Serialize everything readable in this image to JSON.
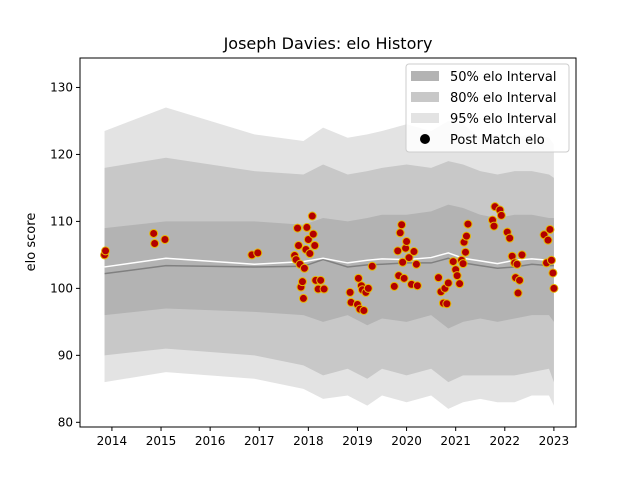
{
  "chart_data": {
    "type": "scatter",
    "title": "Joseph Davies: elo History",
    "xlabel": "",
    "ylabel": "elo score",
    "xlim": [
      2013.35,
      2023.45
    ],
    "ylim": [
      79.3,
      134.4
    ],
    "x_ticks": [
      2014,
      2015,
      2016,
      2017,
      2018,
      2019,
      2020,
      2021,
      2022,
      2023
    ],
    "y_ticks": [
      80,
      90,
      100,
      110,
      120,
      130
    ],
    "legend_position": "top-right",
    "grid": false,
    "legend": [
      {
        "label": "50% elo Interval",
        "kind": "band",
        "color": "#b3b3b3"
      },
      {
        "label": "80% elo Interval",
        "kind": "band",
        "color": "#c8c8c8"
      },
      {
        "label": "95% elo Interval",
        "kind": "band",
        "color": "#e3e3e3"
      },
      {
        "label": "Post Match elo",
        "kind": "marker",
        "color": "#000000"
      }
    ],
    "colors": {
      "band_50": "#b3b3b3",
      "band_80": "#c8c8c8",
      "band_95": "#e3e3e3",
      "median_line": "#808080",
      "mean_line": "#ffffff",
      "point_fill": "#b30000",
      "point_edge": "#e6b800"
    },
    "intervals": {
      "x": [
        2013.85,
        2015.1,
        2016.9,
        2017.9,
        2018.3,
        2018.8,
        2019.2,
        2019.5,
        2020.0,
        2020.5,
        2020.85,
        2021.15,
        2021.5,
        2021.85,
        2022.2,
        2022.55,
        2022.9,
        2023.0
      ],
      "lower_95": [
        86.0,
        87.5,
        86.5,
        85.0,
        83.5,
        84.0,
        82.5,
        84.0,
        83.0,
        84.0,
        82.0,
        83.0,
        83.5,
        83.0,
        83.0,
        84.0,
        84.0,
        82.5
      ],
      "lower_80": [
        90.0,
        91.0,
        90.0,
        88.5,
        87.0,
        88.0,
        86.5,
        88.0,
        87.0,
        88.0,
        86.0,
        87.0,
        87.0,
        87.0,
        87.0,
        87.5,
        88.0,
        86.0
      ],
      "lower_50": [
        96.0,
        97.0,
        96.5,
        96.0,
        95.0,
        96.0,
        94.5,
        95.5,
        95.0,
        96.0,
        94.0,
        95.0,
        95.5,
        95.0,
        95.5,
        96.0,
        96.0,
        95.0
      ],
      "median": [
        102.2,
        103.4,
        103.2,
        103.3,
        104.3,
        103.2,
        103.5,
        103.6,
        103.8,
        103.8,
        104.5,
        103.8,
        103.4,
        103.0,
        103.2,
        103.6,
        103.4,
        103.4
      ],
      "mean": [
        103.2,
        104.5,
        103.6,
        104.0,
        104.5,
        103.8,
        104.2,
        104.4,
        104.3,
        104.6,
        105.3,
        104.5,
        104.1,
        103.7,
        104.2,
        104.4,
        104.2,
        104.2
      ],
      "upper_50": [
        109.0,
        110.0,
        110.0,
        109.5,
        110.5,
        110.0,
        110.5,
        111.0,
        111.0,
        111.5,
        112.5,
        112.0,
        111.0,
        110.5,
        111.0,
        111.0,
        110.5,
        110.5
      ],
      "upper_80": [
        118.0,
        119.5,
        117.5,
        117.0,
        118.5,
        117.0,
        117.5,
        118.0,
        118.5,
        118.0,
        119.0,
        118.5,
        117.5,
        117.0,
        117.5,
        117.5,
        117.0,
        116.5
      ],
      "upper_95": [
        123.5,
        127.0,
        123.0,
        122.0,
        124.0,
        122.5,
        123.0,
        123.5,
        124.5,
        123.5,
        125.0,
        124.5,
        122.5,
        123.0,
        122.5,
        123.0,
        122.5,
        121.5
      ]
    },
    "points": [
      {
        "x": 2013.85,
        "y": 105.0
      },
      {
        "x": 2013.87,
        "y": 105.6
      },
      {
        "x": 2014.85,
        "y": 108.2
      },
      {
        "x": 2014.87,
        "y": 106.7
      },
      {
        "x": 2015.08,
        "y": 107.3
      },
      {
        "x": 2016.85,
        "y": 105.0
      },
      {
        "x": 2016.97,
        "y": 105.3
      },
      {
        "x": 2017.72,
        "y": 104.9
      },
      {
        "x": 2017.75,
        "y": 104.3
      },
      {
        "x": 2017.78,
        "y": 109.0
      },
      {
        "x": 2017.8,
        "y": 106.4
      },
      {
        "x": 2017.83,
        "y": 103.6
      },
      {
        "x": 2017.85,
        "y": 100.2
      },
      {
        "x": 2017.88,
        "y": 101.0
      },
      {
        "x": 2017.9,
        "y": 98.5
      },
      {
        "x": 2017.92,
        "y": 103.0
      },
      {
        "x": 2017.95,
        "y": 105.8
      },
      {
        "x": 2017.97,
        "y": 109.1
      },
      {
        "x": 2018.0,
        "y": 107.3
      },
      {
        "x": 2018.03,
        "y": 105.2
      },
      {
        "x": 2018.08,
        "y": 110.8
      },
      {
        "x": 2018.1,
        "y": 108.1
      },
      {
        "x": 2018.13,
        "y": 106.4
      },
      {
        "x": 2018.15,
        "y": 101.2
      },
      {
        "x": 2018.2,
        "y": 99.9
      },
      {
        "x": 2018.25,
        "y": 101.2
      },
      {
        "x": 2018.32,
        "y": 99.9
      },
      {
        "x": 2018.85,
        "y": 99.4
      },
      {
        "x": 2018.87,
        "y": 97.9
      },
      {
        "x": 2019.0,
        "y": 97.6
      },
      {
        "x": 2019.02,
        "y": 101.5
      },
      {
        "x": 2019.05,
        "y": 96.9
      },
      {
        "x": 2019.08,
        "y": 100.4
      },
      {
        "x": 2019.1,
        "y": 99.8
      },
      {
        "x": 2019.13,
        "y": 96.7
      },
      {
        "x": 2019.17,
        "y": 99.4
      },
      {
        "x": 2019.22,
        "y": 100.0
      },
      {
        "x": 2019.3,
        "y": 103.3
      },
      {
        "x": 2019.75,
        "y": 100.3
      },
      {
        "x": 2019.82,
        "y": 105.6
      },
      {
        "x": 2019.84,
        "y": 101.9
      },
      {
        "x": 2019.87,
        "y": 108.3
      },
      {
        "x": 2019.9,
        "y": 109.5
      },
      {
        "x": 2019.92,
        "y": 103.9
      },
      {
        "x": 2019.95,
        "y": 101.5
      },
      {
        "x": 2019.98,
        "y": 106.0
      },
      {
        "x": 2020.0,
        "y": 107.0
      },
      {
        "x": 2020.05,
        "y": 104.6
      },
      {
        "x": 2020.1,
        "y": 100.6
      },
      {
        "x": 2020.15,
        "y": 105.5
      },
      {
        "x": 2020.2,
        "y": 103.6
      },
      {
        "x": 2020.22,
        "y": 100.4
      },
      {
        "x": 2020.65,
        "y": 101.6
      },
      {
        "x": 2020.7,
        "y": 99.5
      },
      {
        "x": 2020.75,
        "y": 97.8
      },
      {
        "x": 2020.78,
        "y": 100.0
      },
      {
        "x": 2020.82,
        "y": 97.7
      },
      {
        "x": 2020.85,
        "y": 100.8
      },
      {
        "x": 2020.95,
        "y": 104.0
      },
      {
        "x": 2021.0,
        "y": 102.8
      },
      {
        "x": 2021.03,
        "y": 101.9
      },
      {
        "x": 2021.08,
        "y": 100.7
      },
      {
        "x": 2021.12,
        "y": 104.2
      },
      {
        "x": 2021.15,
        "y": 103.7
      },
      {
        "x": 2021.17,
        "y": 106.9
      },
      {
        "x": 2021.2,
        "y": 105.4
      },
      {
        "x": 2021.22,
        "y": 107.8
      },
      {
        "x": 2021.25,
        "y": 109.6
      },
      {
        "x": 2021.75,
        "y": 110.2
      },
      {
        "x": 2021.78,
        "y": 109.3
      },
      {
        "x": 2021.8,
        "y": 112.2
      },
      {
        "x": 2021.9,
        "y": 111.7
      },
      {
        "x": 2021.93,
        "y": 110.9
      },
      {
        "x": 2022.05,
        "y": 108.4
      },
      {
        "x": 2022.1,
        "y": 107.5
      },
      {
        "x": 2022.15,
        "y": 104.8
      },
      {
        "x": 2022.2,
        "y": 103.8
      },
      {
        "x": 2022.22,
        "y": 101.6
      },
      {
        "x": 2022.25,
        "y": 103.6
      },
      {
        "x": 2022.27,
        "y": 99.3
      },
      {
        "x": 2022.3,
        "y": 101.2
      },
      {
        "x": 2022.35,
        "y": 105.0
      },
      {
        "x": 2022.8,
        "y": 108.0
      },
      {
        "x": 2022.85,
        "y": 103.8
      },
      {
        "x": 2022.88,
        "y": 107.2
      },
      {
        "x": 2022.92,
        "y": 108.8
      },
      {
        "x": 2022.95,
        "y": 104.2
      },
      {
        "x": 2022.98,
        "y": 102.3
      },
      {
        "x": 2023.0,
        "y": 100.0
      }
    ]
  }
}
